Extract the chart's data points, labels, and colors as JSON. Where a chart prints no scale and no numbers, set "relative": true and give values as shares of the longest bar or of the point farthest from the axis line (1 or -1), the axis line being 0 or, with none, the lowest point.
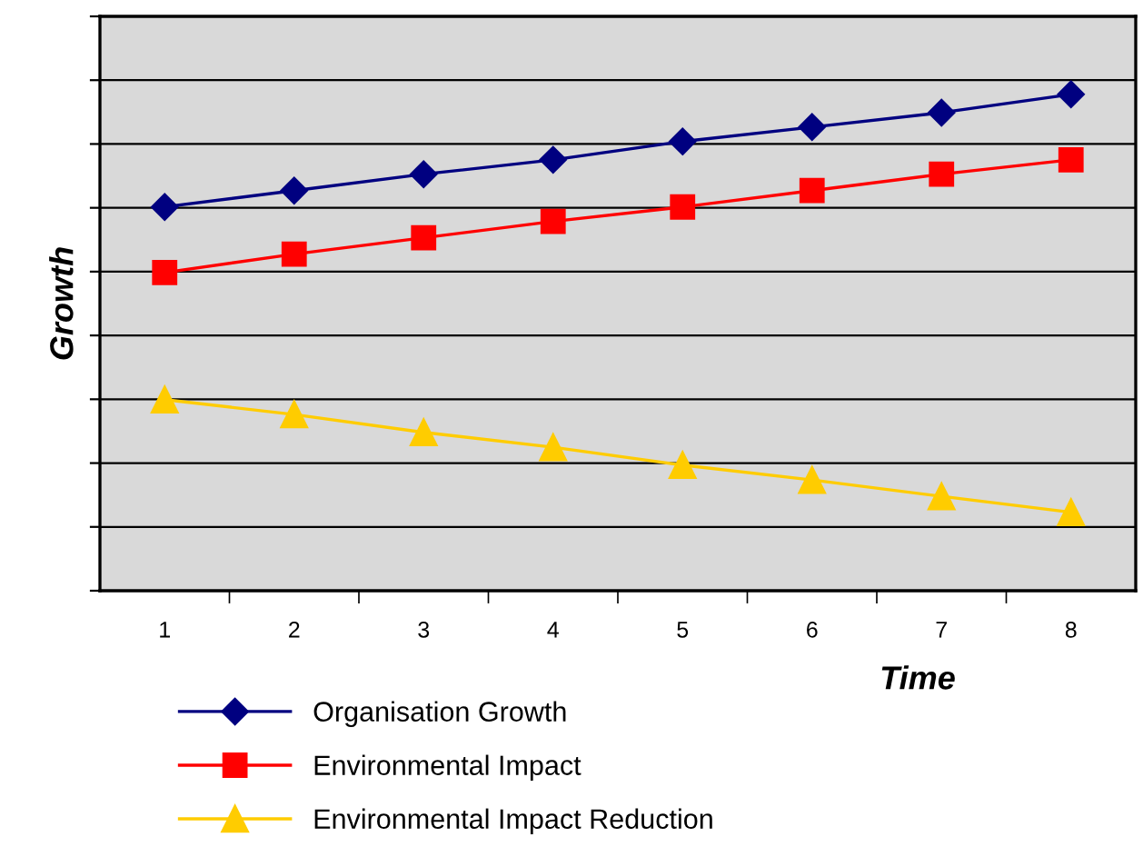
{
  "chart_data": {
    "type": "line",
    "relative": true,
    "xlabel": "Time",
    "ylabel": "Growth",
    "categories": [
      "1",
      "2",
      "3",
      "4",
      "5",
      "6",
      "7",
      "8"
    ],
    "series": [
      {
        "name": "Organisation Growth",
        "color": "#000080",
        "marker": "diamond",
        "values": [
          0.773,
          0.806,
          0.839,
          0.868,
          0.905,
          0.934,
          0.963,
          1.0
        ]
      },
      {
        "name": "Environmental Impact",
        "color": "#ff0000",
        "marker": "square",
        "values": [
          0.641,
          0.678,
          0.711,
          0.744,
          0.773,
          0.806,
          0.839,
          0.868
        ]
      },
      {
        "name": "Environmental Impact Reduction",
        "color": "#ffcc00",
        "marker": "triangle",
        "values": [
          0.385,
          0.355,
          0.319,
          0.289,
          0.253,
          0.223,
          0.19,
          0.158
        ]
      }
    ],
    "grid": "y",
    "legend": "bottom",
    "line_style": "solid"
  }
}
